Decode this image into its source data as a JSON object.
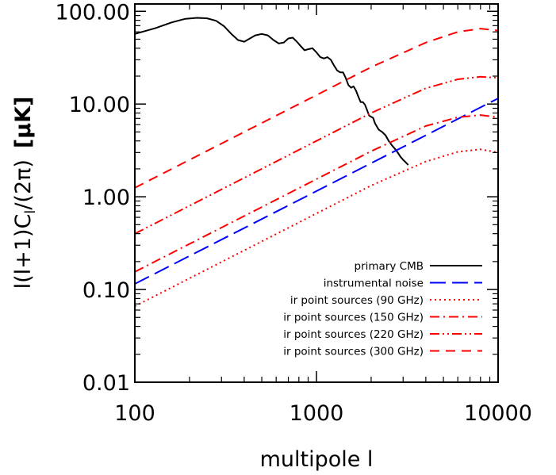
{
  "chart_data": {
    "type": "line",
    "xlabel": "multipole l",
    "ylabel": "l(l+1)C",
    "ylabel_sub": "l",
    "ylabel_tail": "/(2π)",
    "ylabel_unit": "[μK]",
    "x_scale": "log",
    "y_scale": "log",
    "xlim": [
      100,
      10000
    ],
    "ylim": [
      0.01,
      120
    ],
    "x_ticks": [
      100,
      1000,
      10000
    ],
    "x_tick_labels": [
      "100",
      "1000",
      "10000"
    ],
    "y_ticks": [
      0.01,
      0.1,
      1,
      10,
      100
    ],
    "y_tick_labels": [
      "0.01",
      "0.10",
      "1.00",
      "10.00",
      "100.00"
    ],
    "grid": false,
    "legend_position": "bottom-right",
    "series": [
      {
        "name": "primary CMB",
        "color": "#000000",
        "style": "solid",
        "x": [
          100,
          130,
          160,
          190,
          220,
          250,
          280,
          310,
          340,
          370,
          400,
          430,
          460,
          500,
          540,
          580,
          620,
          660,
          700,
          740,
          780,
          820,
          860,
          900,
          950,
          1000,
          1050,
          1100,
          1150,
          1200,
          1250,
          1300,
          1350,
          1400,
          1450,
          1500,
          1550,
          1600,
          1650,
          1700,
          1750,
          1800,
          1850,
          1900,
          1950,
          2000,
          2050,
          2100,
          2200,
          2300,
          2400,
          2500,
          2600,
          2700,
          2800,
          2900,
          3000,
          3100,
          3200
        ],
        "y": [
          57,
          66,
          76,
          83,
          85,
          84,
          79,
          69,
          57,
          49,
          47,
          51,
          55,
          57,
          55,
          49,
          45,
          46,
          51,
          52,
          47,
          42,
          38,
          39,
          40,
          36,
          32,
          31,
          32,
          30,
          26,
          23,
          22,
          22,
          19,
          16,
          15,
          15.5,
          14,
          12,
          10.5,
          10.5,
          9.8,
          8.6,
          7.5,
          7.3,
          7.1,
          6.2,
          5.3,
          5.0,
          4.6,
          4.0,
          3.6,
          3.3,
          3.0,
          2.7,
          2.5,
          2.35,
          2.2
        ]
      },
      {
        "name": "instrumental noise",
        "color": "#0000ff",
        "style": "long-dash",
        "x": [
          100,
          1000,
          10000
        ],
        "y": [
          0.115,
          1.15,
          11.5
        ]
      },
      {
        "name": "ir point sources (90 GHz)",
        "color": "#ff0000",
        "style": "dotted",
        "x": [
          100,
          200,
          500,
          1000,
          2000,
          4000,
          6000,
          8000,
          10000
        ],
        "y": [
          0.066,
          0.132,
          0.33,
          0.66,
          1.32,
          2.4,
          3.05,
          3.25,
          3.0
        ]
      },
      {
        "name": "ir point sources (150 GHz)",
        "color": "#ff0000",
        "style": "dash-dot",
        "x": [
          100,
          200,
          500,
          1000,
          2000,
          4000,
          6000,
          8000,
          10000
        ],
        "y": [
          0.155,
          0.31,
          0.775,
          1.55,
          3.1,
          5.8,
          7.2,
          7.6,
          7.2
        ]
      },
      {
        "name": "ir point sources (220 GHz)",
        "color": "#ff0000",
        "style": "dash-dot-dot",
        "x": [
          100,
          200,
          500,
          1000,
          2000,
          4000,
          6000,
          8000,
          10000
        ],
        "y": [
          0.4,
          0.8,
          2.0,
          4.0,
          8.0,
          14.8,
          18.5,
          19.7,
          19.2
        ]
      },
      {
        "name": "ir point sources (300 GHz)",
        "color": "#ff0000",
        "style": "dashed",
        "x": [
          100,
          200,
          500,
          1000,
          2000,
          4000,
          6000,
          8000,
          10000
        ],
        "y": [
          1.25,
          2.5,
          6.25,
          12.5,
          25,
          46,
          60,
          65,
          62
        ]
      }
    ]
  }
}
